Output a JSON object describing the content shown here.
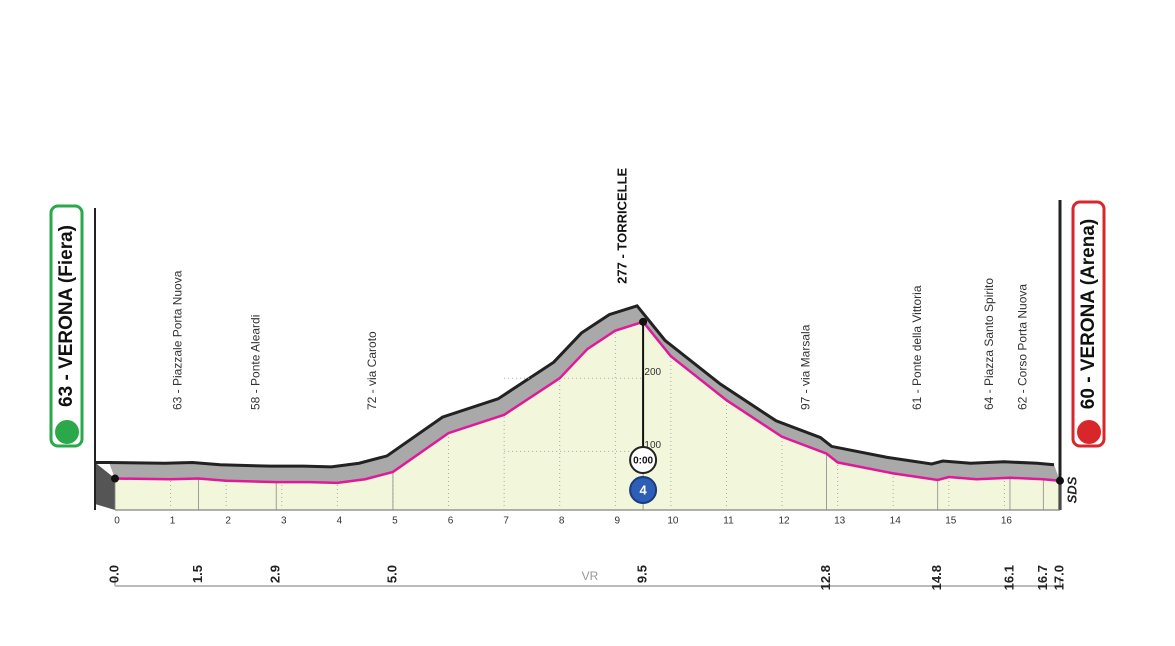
{
  "chart_data": {
    "type": "area",
    "start": "63 - VERONA (Fiera)",
    "finish": "60 - VERONA (Arena)",
    "summit": "277 - TORRICELLE",
    "timer": "0:00",
    "climb_category": "4",
    "region": "VR",
    "logo": "SDS",
    "x": [
      0,
      1,
      1.5,
      2,
      2.9,
      3.5,
      4,
      4.5,
      5,
      6,
      7,
      8,
      8.5,
      9,
      9.5,
      10,
      11,
      12,
      12.8,
      13,
      14,
      14.8,
      15,
      15.5,
      16.1,
      16.7,
      17
    ],
    "values": [
      63,
      62,
      63,
      60,
      58,
      58,
      57,
      62,
      72,
      125,
      150,
      200,
      240,
      265,
      277,
      230,
      170,
      120,
      97,
      85,
      70,
      61,
      65,
      62,
      64,
      62,
      60
    ],
    "color": "#e0199a",
    "fill": "#f2f6da",
    "xlim": [
      0,
      17
    ],
    "ylim": [
      20,
      300
    ],
    "xticks": [
      0,
      1,
      2,
      3,
      4,
      5,
      6,
      7,
      8,
      9,
      10,
      11,
      12,
      13,
      14,
      15,
      16
    ],
    "yticks": [
      100,
      200
    ],
    "grid": true,
    "waypoints": [
      {
        "km": {
          "value": 0,
          "label": "0.0"
        }
      },
      {
        "km": 1.5,
        "label": "63 - Piazzale Porta Nuova"
      },
      {
        "km": 2.9,
        "label": "58 - Ponte Aleardi"
      },
      {
        "km": {
          "value": 5,
          "label": "5.0"
        },
        "label": "72 - via Caroto"
      },
      {
        "km": 9.5
      },
      {
        "km": 12.8,
        "label": "97 - via Marsala"
      },
      {
        "km": 14.8,
        "label": "61 - Ponte della Vittoria"
      },
      {
        "km": 16.1,
        "label": "64 - Piazza Santo Spirito"
      },
      {
        "km": 16.7,
        "label": "62 - Corso Porta Nuova"
      },
      {
        "km": {
          "value": 17,
          "label": "17.0"
        }
      }
    ]
  }
}
